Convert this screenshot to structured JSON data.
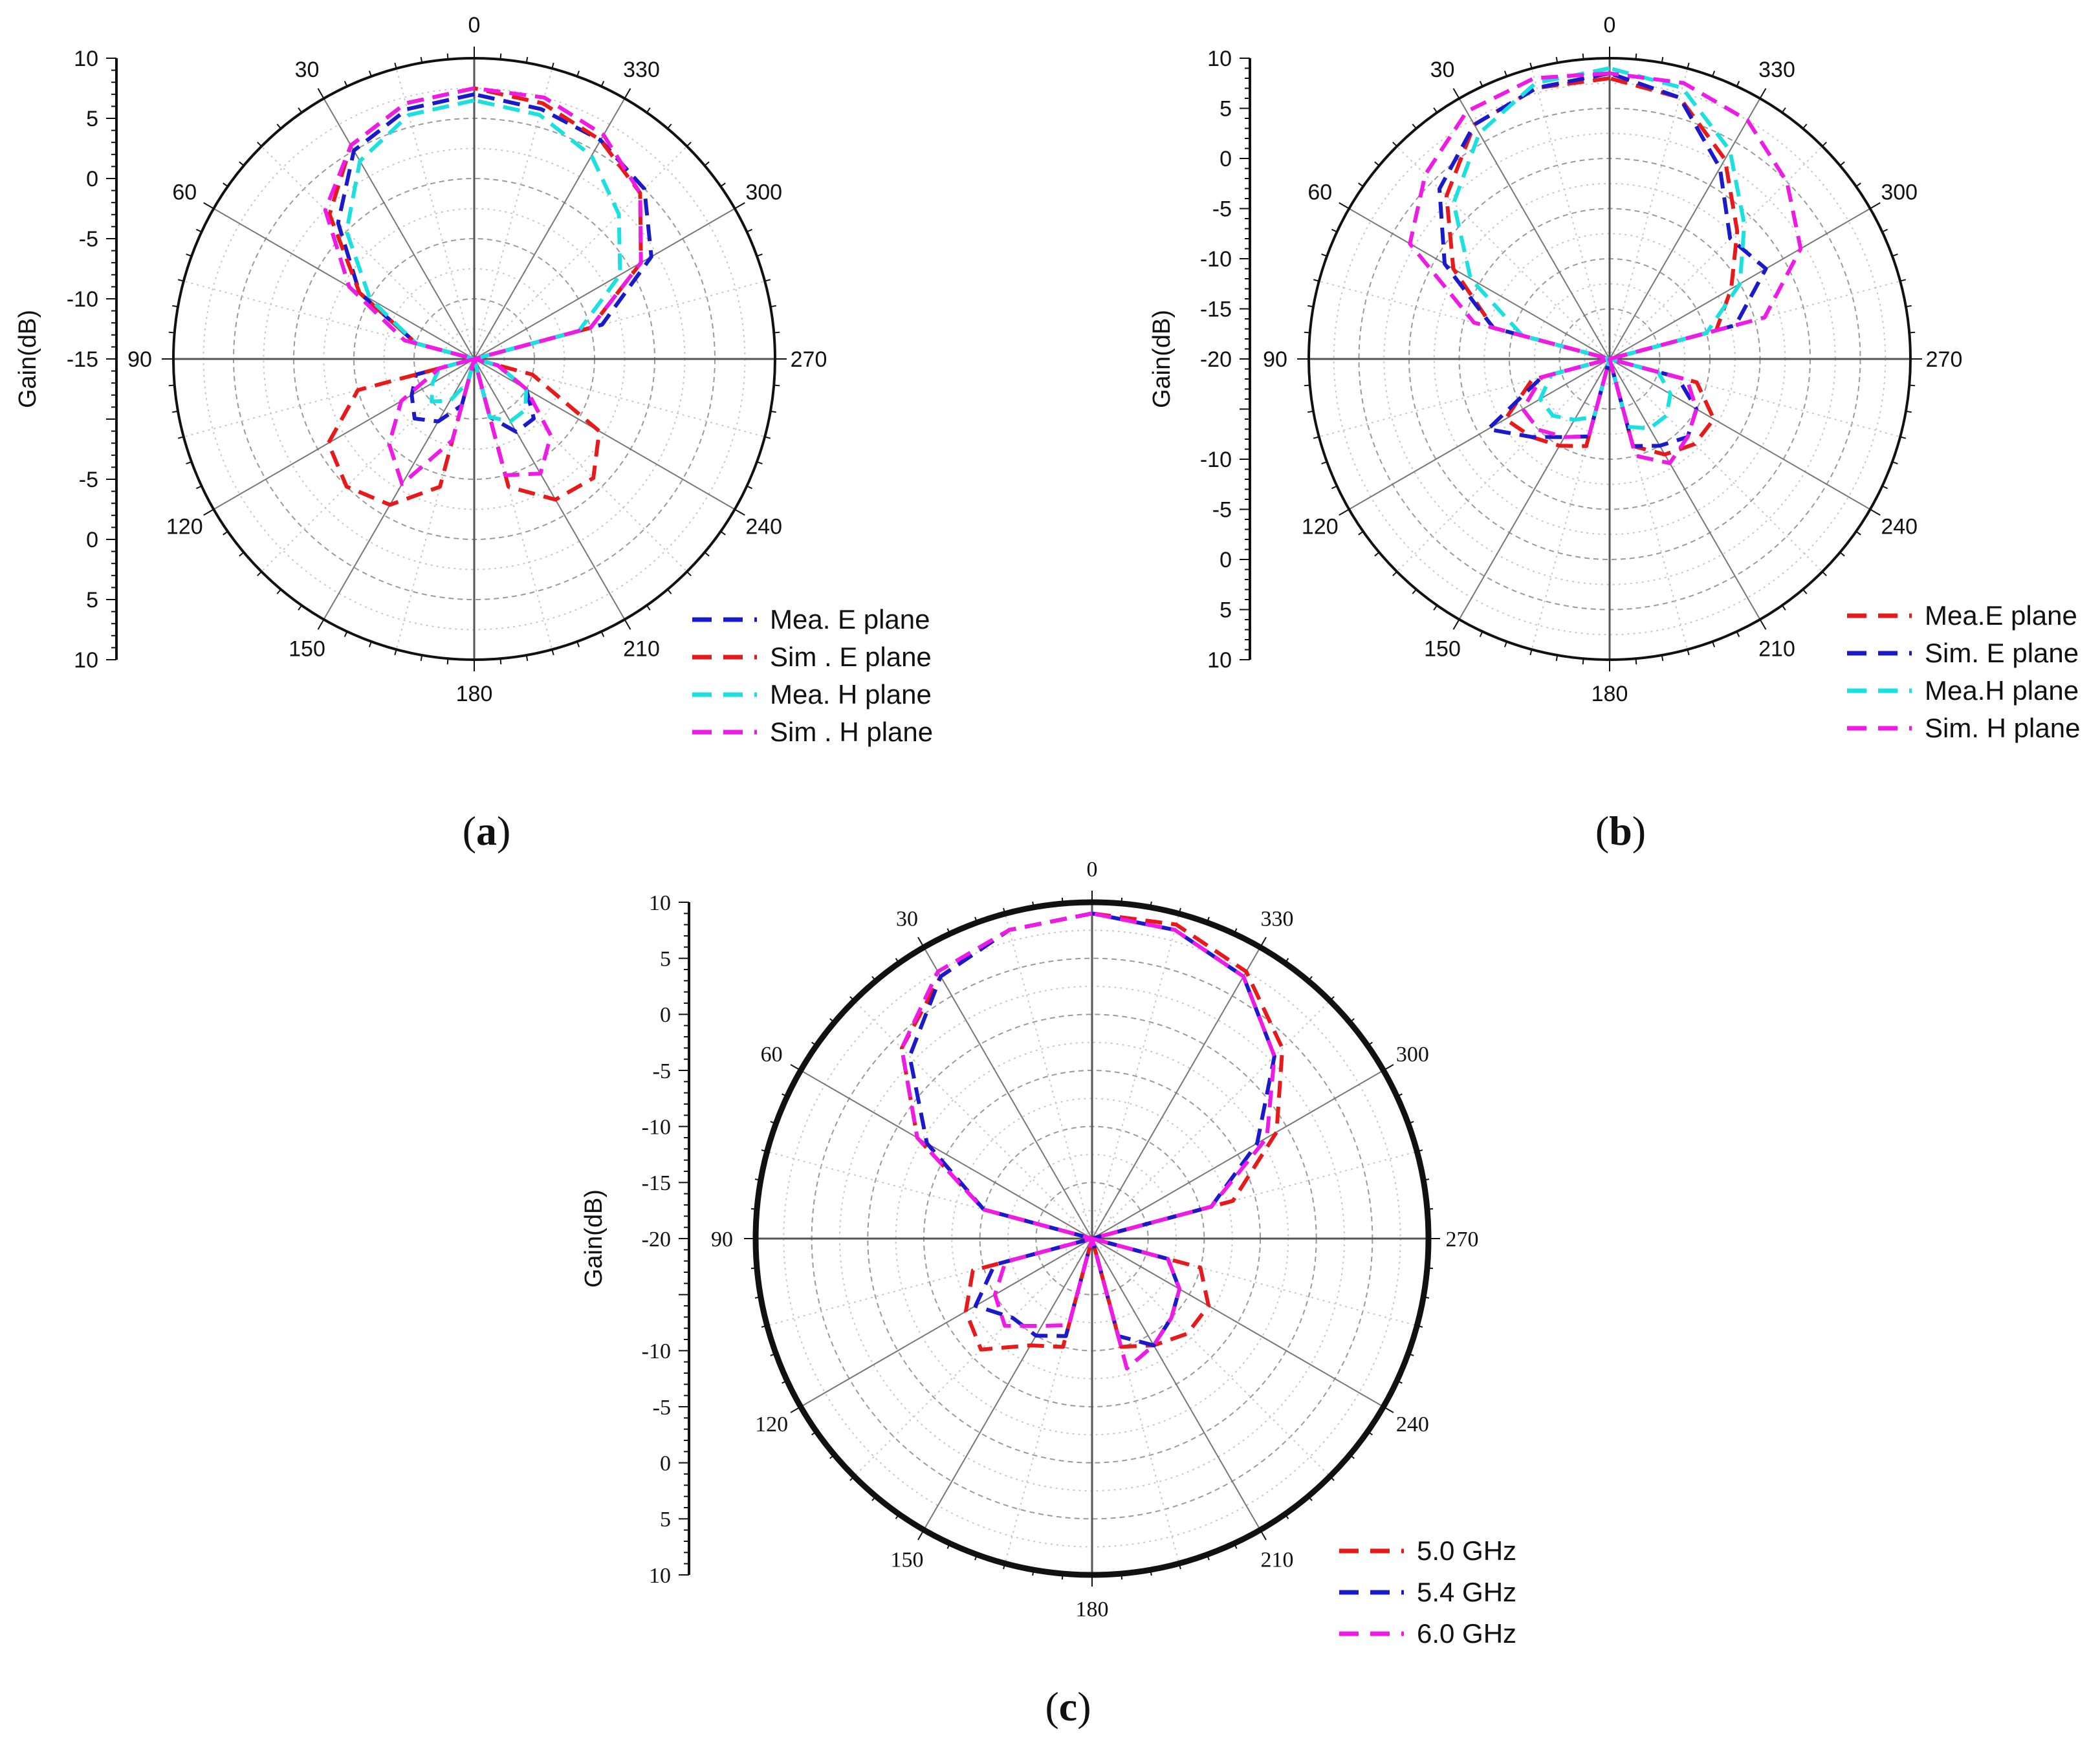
{
  "figure": {
    "captions": [
      {
        "open": "(",
        "letter": "a",
        "close": ")"
      },
      {
        "open": "(",
        "letter": "b",
        "close": ")"
      },
      {
        "open": "(",
        "letter": "c",
        "close": ")"
      }
    ]
  },
  "chart_data": [
    {
      "id": "a",
      "type": "polar-line",
      "ylabel": "Gain(dB)",
      "radial_range_dB": [
        -15,
        10
      ],
      "gain_axis_ticks_top": [
        "10",
        "5",
        "0",
        "-5",
        "-10"
      ],
      "gain_axis_ticks_bottom": [
        "-5",
        "0",
        "5",
        "10"
      ],
      "angle_labels": [
        "0",
        "30",
        "60",
        "90",
        "120",
        "150",
        "180",
        "210",
        "240",
        "270",
        "300",
        "330"
      ],
      "angles_deg": [
        0,
        15,
        30,
        45,
        60,
        75,
        90,
        105,
        120,
        135,
        150,
        165,
        180,
        195,
        210,
        225,
        240,
        255,
        270,
        285,
        300,
        315,
        330,
        345
      ],
      "series": [
        {
          "name": "Mea. E plane",
          "color": "#1a1acc",
          "values": [
            7,
            6.5,
            5,
            1,
            -4,
            -10,
            -15,
            -10,
            -9,
            -8,
            -9,
            -11,
            -15,
            -10,
            -8,
            -8,
            -10,
            -13,
            -15,
            -4,
            2,
            5,
            6,
            6.5
          ]
        },
        {
          "name": "Sim . E plane",
          "color": "#e8191b",
          "values": [
            7.5,
            7,
            5.5,
            2,
            -4,
            -10,
            -15,
            -5,
            -1,
            0,
            -1,
            -4,
            -15,
            -4,
            -1.5,
            -1,
            -3,
            -10,
            -15,
            -5,
            1,
            4.5,
            6,
            7
          ]
        },
        {
          "name": "Mea. H plane",
          "color": "#1ae0e0",
          "values": [
            6.5,
            6,
            4,
            0,
            -5,
            -10,
            -15,
            -12,
            -11,
            -10,
            -11,
            -13,
            -15,
            -10,
            -9,
            -9,
            -10,
            -13,
            -15,
            -6,
            -1,
            2,
            4.5,
            6
          ]
        },
        {
          "name": "Sim . H plane",
          "color": "#f01ae6",
          "values": [
            7.5,
            7,
            5.5,
            2.5,
            -3,
            -9,
            -15,
            -12,
            -8,
            -5,
            -3,
            -8,
            -15,
            -5,
            -4,
            -6,
            -10,
            -13,
            -15,
            -5,
            1,
            4.5,
            6.5,
            7.5
          ]
        }
      ]
    },
    {
      "id": "b",
      "type": "polar-line",
      "ylabel": "Gain(dB)",
      "radial_range_dB": [
        -20,
        10
      ],
      "gain_axis_ticks_top": [
        "10",
        "5",
        "0",
        "-5",
        "-10",
        "-15"
      ],
      "gain_axis_ticks_bottom": [
        "-10",
        "-5",
        "0",
        "5",
        "10"
      ],
      "angle_labels": [
        "0",
        "30",
        "60",
        "90",
        "120",
        "150",
        "180",
        "210",
        "240",
        "270",
        "300",
        "330"
      ],
      "angles_deg": [
        0,
        15,
        30,
        45,
        60,
        75,
        90,
        105,
        120,
        135,
        150,
        165,
        180,
        195,
        210,
        225,
        240,
        255,
        270,
        285,
        300,
        315,
        330,
        345
      ],
      "series": [
        {
          "name": "Mea.E plane",
          "color": "#e8191b",
          "values": [
            8,
            8,
            7,
            3,
            -2,
            -8,
            -20,
            -12,
            -8,
            -9,
            -10,
            -11,
            -20,
            -11,
            -9,
            -8,
            -8,
            -11,
            -20,
            -9,
            -6,
            -2,
            3,
            7
          ]
        },
        {
          "name": "Sim. E plane",
          "color": "#1a1acc",
          "values": [
            8.5,
            8,
            7,
            4,
            -1,
            -8,
            -20,
            -13,
            -6,
            -9,
            -11,
            -12,
            -20,
            -11,
            -10,
            -9,
            -10,
            -13,
            -20,
            -7,
            -2,
            -3,
            2,
            7
          ]
        },
        {
          "name": "Mea.H plane",
          "color": "#1ae0e0",
          "values": [
            9,
            8.5,
            6,
            2,
            -4,
            -11,
            -20,
            -14,
            -12,
            -12,
            -13,
            -14,
            -20,
            -13,
            -12,
            -12,
            -13,
            -15,
            -20,
            -10,
            -5,
            -1,
            4,
            8
          ]
        },
        {
          "name": "Sim. H plane",
          "color": "#f01ae6",
          "values": [
            8.5,
            9,
            8.5,
            6,
            3,
            -6,
            -20,
            -13,
            -10,
            -10,
            -11,
            -12,
            -20,
            -10,
            -8,
            -9,
            -10,
            -12,
            -20,
            -4,
            2,
            5,
            7.5,
            8.5
          ]
        }
      ]
    },
    {
      "id": "c",
      "type": "polar-line",
      "ylabel": "Gain(dB)",
      "radial_range_dB": [
        -20,
        10
      ],
      "gain_axis_ticks_top": [
        "10",
        "5",
        "0",
        "-5",
        "-10",
        "-15"
      ],
      "gain_axis_ticks_bottom": [
        "-10",
        "-5",
        "0",
        "5",
        "10"
      ],
      "angle_labels": [
        "0",
        "30",
        "60",
        "90",
        "120",
        "150",
        "180",
        "210",
        "240",
        "270",
        "300",
        "330"
      ],
      "angles_deg": [
        0,
        15,
        30,
        45,
        60,
        75,
        90,
        105,
        120,
        135,
        150,
        165,
        180,
        195,
        210,
        225,
        240,
        255,
        270,
        285,
        300,
        315,
        330,
        345
      ],
      "series": [
        {
          "name": "5.0 GHz",
          "color": "#e8191b",
          "values": [
            9,
            8.5,
            7,
            4,
            -2,
            -10,
            -20,
            -9,
            -7,
            -6,
            -9,
            -10,
            -20,
            -10,
            -9,
            -8,
            -8,
            -10,
            -20,
            -7,
            -1,
            4,
            7.5,
            9
          ]
        },
        {
          "name": "5.4 GHz",
          "color": "#1a1acc",
          "values": [
            9,
            8.5,
            7,
            3,
            -3,
            -10,
            -20,
            -11,
            -8,
            -10,
            -10,
            -11,
            -20,
            -11,
            -9,
            -10,
            -11,
            -13,
            -20,
            -9,
            -3,
            3,
            7,
            8.5
          ]
        },
        {
          "name": "6.0 GHz",
          "color": "#f01ae6",
          "values": [
            9,
            8.5,
            7.5,
            4,
            -2,
            -10,
            -20,
            -12,
            -10,
            -9,
            -11,
            -12,
            -20,
            -8,
            -9,
            -10,
            -11,
            -13,
            -20,
            -9,
            -2,
            3,
            7,
            8.5
          ]
        }
      ]
    }
  ]
}
